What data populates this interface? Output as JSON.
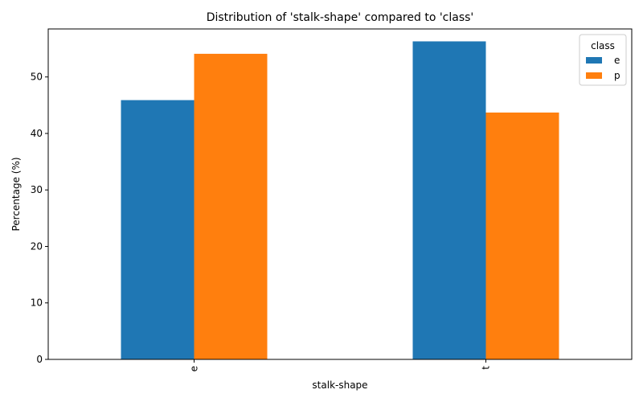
{
  "chart_data": {
    "type": "bar",
    "title": "Distribution of 'stalk-shape' compared to 'class'",
    "xlabel": "stalk-shape",
    "ylabel": "Percentage (%)",
    "categories": [
      "e",
      "t"
    ],
    "series": [
      {
        "name": "e",
        "values": [
          45.9,
          56.3
        ],
        "color": "#1f77b4"
      },
      {
        "name": "p",
        "values": [
          54.1,
          43.7
        ],
        "color": "#ff7f0e"
      }
    ],
    "ylim": [
      0,
      58.5
    ],
    "yticks": [
      0,
      10,
      20,
      30,
      40,
      50
    ],
    "legend": {
      "title": "class",
      "placement": "top-right"
    },
    "grid": false
  }
}
